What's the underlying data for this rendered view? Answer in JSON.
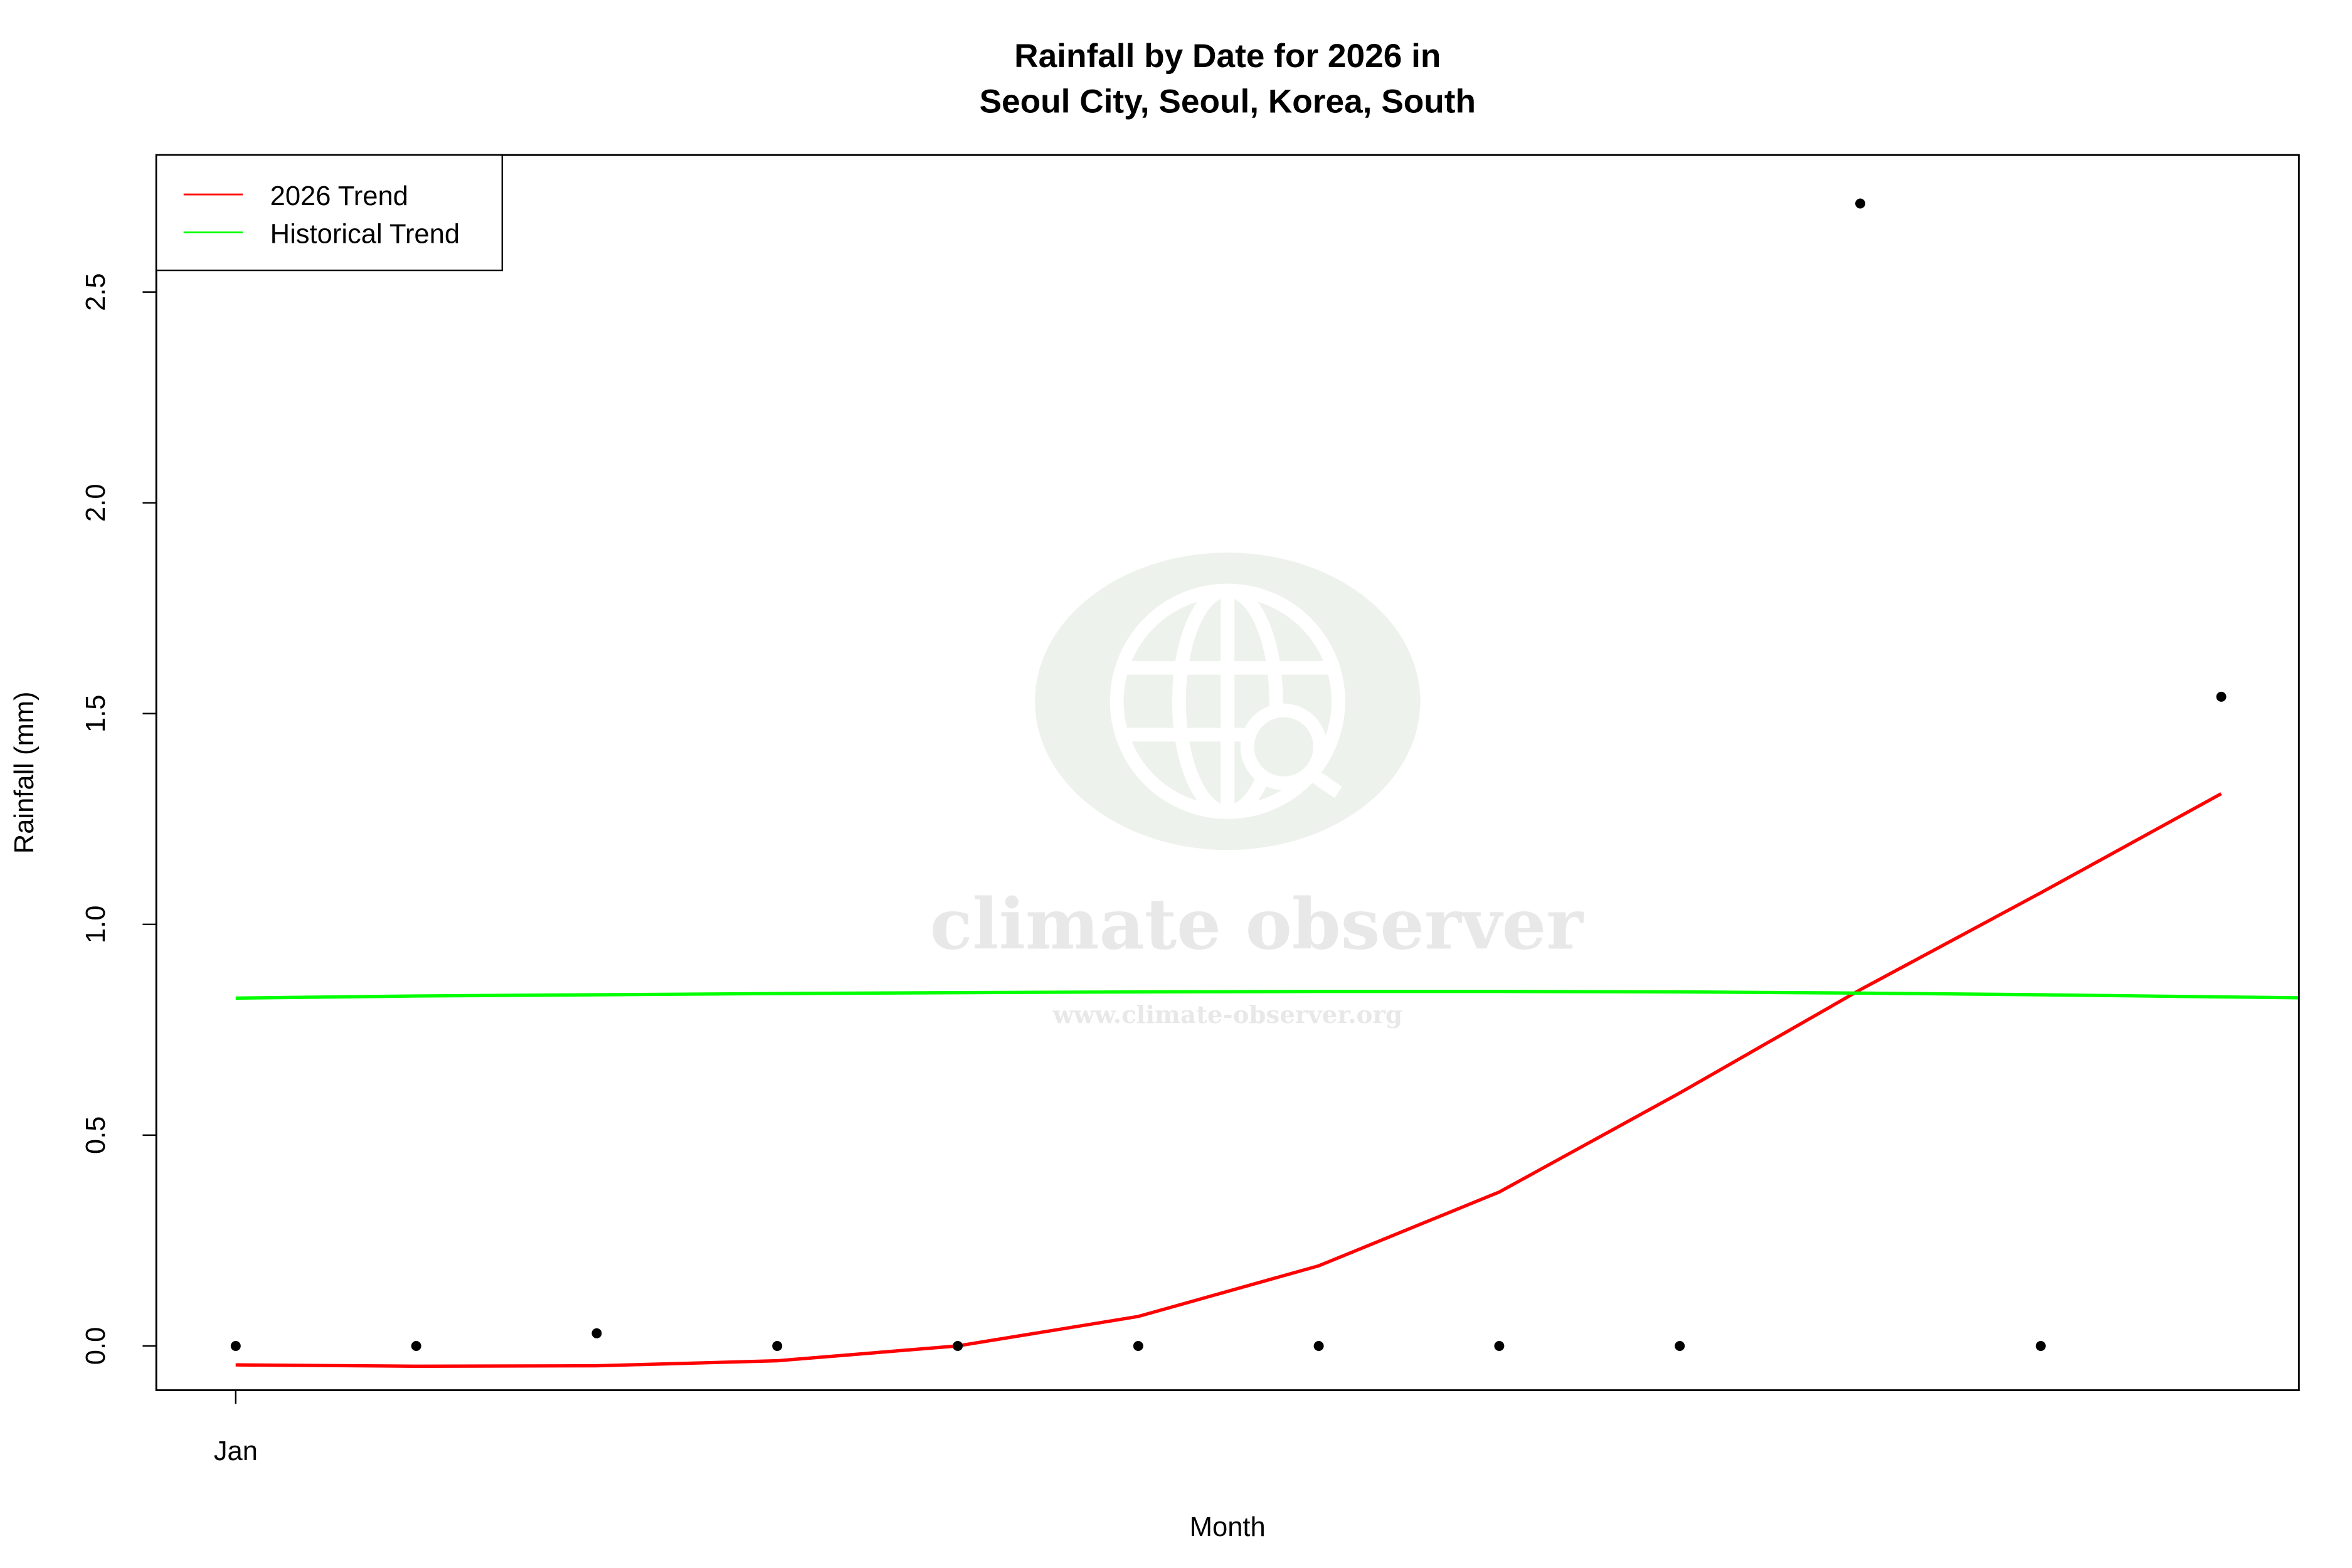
{
  "chart_data": {
    "type": "line",
    "title": "Rainfall by Date for 2026 in",
    "subtitle": "Seoul City, Seoul, Korea, South",
    "xlabel": "Month",
    "ylabel": "Rainfall (mm)",
    "x_tick_labels": [
      {
        "x": 1,
        "label": "Jan"
      }
    ],
    "y_ticks": [
      0.0,
      0.5,
      1.0,
      1.5,
      2.0,
      2.5
    ],
    "y_tick_labels": [
      "0.0",
      "0.5",
      "1.0",
      "1.5",
      "2.0",
      "2.5"
    ],
    "xlim": [
      0.56,
      12.43
    ],
    "ylim": [
      -0.105,
      2.825
    ],
    "grid": false,
    "legend_position": "top-left",
    "points": {
      "x": [
        1,
        2,
        3,
        4,
        5,
        6,
        7,
        8,
        9,
        10,
        11,
        12
      ],
      "y": [
        0,
        0,
        0.03,
        0,
        0,
        0,
        0,
        0,
        0,
        2.71,
        0,
        1.54
      ],
      "color": "#000000"
    },
    "series": [
      {
        "name": "2026 Trend",
        "color": "#ff0000",
        "x": [
          1,
          2,
          3,
          4,
          5,
          6,
          7,
          8,
          9,
          10,
          11,
          12
        ],
        "y": [
          -0.045,
          -0.048,
          -0.047,
          -0.035,
          0.0,
          0.07,
          0.19,
          0.365,
          0.6,
          0.845,
          1.075,
          1.31
        ]
      },
      {
        "name": "Historical Trend",
        "color": "#00ff00",
        "x": [
          1,
          2,
          3,
          4,
          5,
          6,
          7,
          8,
          9,
          10,
          11,
          12,
          13
        ],
        "y": [
          0.825,
          0.83,
          0.833,
          0.836,
          0.838,
          0.84,
          0.841,
          0.841,
          0.84,
          0.837,
          0.833,
          0.828,
          0.823
        ]
      }
    ]
  },
  "watermark": {
    "name": "climate observer",
    "url": "www.climate-observer.org"
  }
}
